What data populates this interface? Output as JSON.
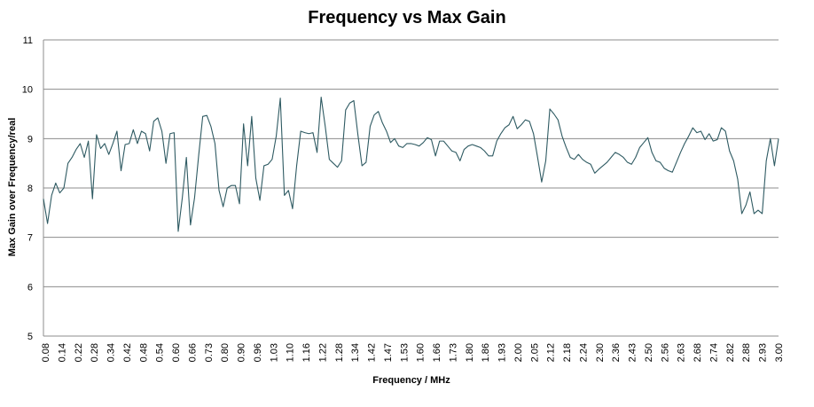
{
  "chart_data": {
    "type": "line",
    "title": "Frequency vs Max Gain",
    "xlabel": "Frequency / MHz",
    "ylabel": "Max Gain  over Frequency/real",
    "ylim": [
      5,
      11
    ],
    "yticks": [
      5,
      6,
      7,
      8,
      9,
      10,
      11
    ],
    "grid": "horizontal",
    "legend": "none",
    "line_color": "#2e5a62",
    "x_tick_labels": [
      "0.08",
      "0.14",
      "0.22",
      "0.28",
      "0.34",
      "0.42",
      "0.48",
      "0.54",
      "0.60",
      "0.66",
      "0.73",
      "0.80",
      "0.90",
      "0.96",
      "1.03",
      "1.10",
      "1.16",
      "1.22",
      "1.28",
      "1.34",
      "1.42",
      "1.47",
      "1.53",
      "1.60",
      "1.66",
      "1.73",
      "1.80",
      "1.86",
      "1.93",
      "2.00",
      "2.05",
      "2.12",
      "2.18",
      "2.24",
      "2.30",
      "2.36",
      "2.43",
      "2.50",
      "2.56",
      "2.63",
      "2.68",
      "2.74",
      "2.82",
      "2.88",
      "2.93",
      "3.00"
    ],
    "series": [
      {
        "values": [
          7.78,
          7.28,
          7.85,
          8.1,
          7.9,
          8.0,
          8.5,
          8.62,
          8.78,
          8.9,
          8.62,
          8.95,
          7.78,
          9.08,
          8.8,
          8.9,
          8.68,
          8.9,
          9.15,
          8.35,
          8.88,
          8.9,
          9.18,
          8.9,
          9.15,
          9.1,
          8.75,
          9.35,
          9.42,
          9.15,
          8.5,
          9.1,
          9.12,
          7.12,
          7.8,
          8.62,
          7.25,
          7.8,
          8.65,
          9.45,
          9.47,
          9.25,
          8.9,
          7.95,
          7.62,
          8.0,
          8.05,
          8.05,
          7.68,
          9.3,
          8.45,
          9.45,
          8.2,
          7.75,
          8.45,
          8.48,
          8.58,
          9.05,
          9.82,
          7.85,
          7.95,
          7.58,
          8.45,
          9.15,
          9.12,
          9.1,
          9.12,
          8.72,
          9.84,
          9.25,
          8.58,
          8.5,
          8.42,
          8.55,
          9.58,
          9.72,
          9.77,
          9.08,
          8.45,
          8.52,
          9.25,
          9.48,
          9.55,
          9.32,
          9.15,
          8.92,
          9.0,
          8.85,
          8.82,
          8.9,
          8.9,
          8.88,
          8.85,
          8.92,
          9.02,
          8.98,
          8.65,
          8.95,
          8.95,
          8.85,
          8.75,
          8.72,
          8.55,
          8.78,
          8.85,
          8.88,
          8.85,
          8.82,
          8.75,
          8.65,
          8.65,
          8.95,
          9.1,
          9.22,
          9.28,
          9.45,
          9.2,
          9.28,
          9.38,
          9.35,
          9.1,
          8.62,
          8.12,
          8.55,
          9.6,
          9.5,
          9.38,
          9.05,
          8.82,
          8.62,
          8.58,
          8.68,
          8.58,
          8.52,
          8.48,
          8.3,
          8.38,
          8.45,
          8.52,
          8.62,
          8.72,
          8.68,
          8.62,
          8.52,
          8.48,
          8.62,
          8.82,
          8.92,
          9.02,
          8.72,
          8.55,
          8.52,
          8.4,
          8.35,
          8.32,
          8.52,
          8.72,
          8.9,
          9.05,
          9.22,
          9.12,
          9.15,
          8.98,
          9.1,
          8.95,
          8.98,
          9.22,
          9.15,
          8.75,
          8.55,
          8.18,
          7.48,
          7.65,
          7.92,
          7.48,
          7.55,
          7.48,
          8.55,
          9.0,
          8.45,
          9.0
        ]
      }
    ]
  }
}
